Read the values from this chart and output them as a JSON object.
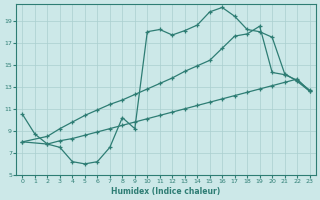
{
  "xlabel": "Humidex (Indice chaleur)",
  "bg_color": "#cce8e8",
  "line_color": "#2e7d74",
  "grid_color": "#aacfcf",
  "xlim": [
    -0.5,
    23.5
  ],
  "ylim": [
    5,
    20.5
  ],
  "xticks": [
    0,
    1,
    2,
    3,
    4,
    5,
    6,
    7,
    8,
    9,
    10,
    11,
    12,
    13,
    14,
    15,
    16,
    17,
    18,
    19,
    20,
    21,
    22,
    23
  ],
  "yticks": [
    5,
    7,
    9,
    11,
    13,
    15,
    17,
    19
  ],
  "curve1_x": [
    0,
    1,
    2,
    3,
    4,
    5,
    6,
    7,
    8,
    9,
    10,
    11,
    12,
    13,
    14,
    15,
    16,
    17,
    18,
    19,
    20,
    21,
    22,
    23
  ],
  "curve1_y": [
    10.5,
    8.7,
    7.8,
    7.5,
    6.2,
    6.0,
    6.2,
    7.5,
    10.2,
    9.2,
    18.0,
    18.2,
    17.7,
    18.1,
    18.6,
    19.8,
    20.2,
    19.4,
    18.2,
    18.0,
    17.5,
    14.2,
    13.5,
    12.6
  ],
  "curve2_x": [
    0,
    2,
    3,
    4,
    5,
    6,
    7,
    8,
    9,
    10,
    11,
    12,
    13,
    14,
    15,
    16,
    17,
    18,
    19,
    20,
    21,
    22,
    23
  ],
  "curve2_y": [
    8.0,
    8.5,
    9.2,
    9.8,
    10.4,
    10.9,
    11.4,
    11.8,
    12.3,
    12.8,
    13.3,
    13.8,
    14.4,
    14.9,
    15.4,
    16.5,
    17.6,
    17.8,
    18.5,
    14.3,
    14.1,
    13.6,
    12.7
  ],
  "curve3_x": [
    0,
    2,
    3,
    4,
    5,
    6,
    7,
    8,
    9,
    10,
    11,
    12,
    13,
    14,
    15,
    16,
    17,
    18,
    19,
    20,
    21,
    22,
    23
  ],
  "curve3_y": [
    8.0,
    7.8,
    8.1,
    8.3,
    8.6,
    8.9,
    9.2,
    9.5,
    9.8,
    10.1,
    10.4,
    10.7,
    11.0,
    11.3,
    11.6,
    11.9,
    12.2,
    12.5,
    12.8,
    13.1,
    13.4,
    13.7,
    12.6
  ]
}
